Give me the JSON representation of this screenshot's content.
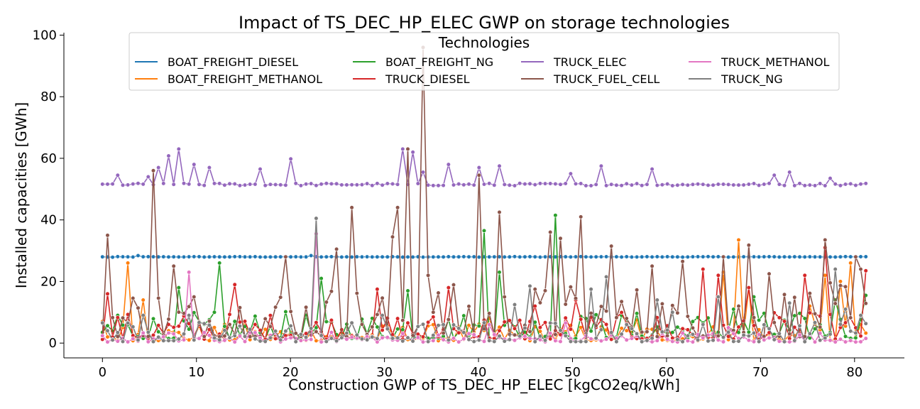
{
  "chart_data": {
    "type": "line",
    "title": "Impact of TS_DEC_HP_ELEC GWP on storage technologies",
    "xlabel": "Construction GWP of TS_DEC_HP_ELEC [kgCO2eq/kWh]",
    "ylabel": "Installed capacities [GWh]",
    "xlim": [
      -4.1,
      85.3
    ],
    "ylim": [
      -4.8,
      100.8
    ],
    "xticks": [
      0,
      10,
      20,
      30,
      40,
      50,
      60,
      70,
      80
    ],
    "yticks": [
      0,
      20,
      40,
      60,
      80,
      100
    ],
    "markers": true,
    "grid": false,
    "legend": {
      "title": "Technologies",
      "placement": "top-center",
      "columns": 4
    },
    "x_range": [
      0,
      81.2
    ],
    "points_per_series": 151,
    "series": [
      {
        "name": "BOAT_FREIGHT_DIESEL",
        "color": "#1f77b4",
        "base": 28.0,
        "noise": 0.15,
        "mode": "flat",
        "peaks": [
          [
            0,
            28.0
          ],
          [
            1.0,
            27.9
          ],
          [
            2.8,
            28.0
          ],
          [
            3.8,
            28.4
          ],
          [
            22.0,
            28.4
          ]
        ]
      },
      {
        "name": "BOAT_FREIGHT_METHANOL",
        "color": "#ff7f0e",
        "base": 2.5,
        "noise": 2.5,
        "mode": "noisy",
        "peaks": [
          [
            0,
            7.0
          ],
          [
            2.5,
            26.0
          ],
          [
            4.5,
            14.0
          ],
          [
            41.0,
            8.0
          ],
          [
            57.0,
            7.5
          ],
          [
            66.0,
            23.0
          ],
          [
            67.5,
            33.5
          ],
          [
            69.0,
            18.0
          ],
          [
            75.5,
            12.0
          ],
          [
            77.0,
            22.0
          ],
          [
            78.5,
            20.0
          ],
          [
            79.5,
            26.0
          ]
        ]
      },
      {
        "name": "BOAT_FREIGHT_NG",
        "color": "#2ca02c",
        "base": 5.0,
        "noise": 4.0,
        "mode": "noisy",
        "peaks": [
          [
            1.5,
            9.0
          ],
          [
            8.0,
            18.0
          ],
          [
            12.6,
            26.0
          ],
          [
            23.5,
            21.0
          ],
          [
            32.5,
            17.0
          ],
          [
            40.4,
            36.5
          ],
          [
            42.0,
            23.0
          ],
          [
            48.0,
            41.5
          ],
          [
            51.5,
            8.0
          ],
          [
            63.0,
            7.0
          ],
          [
            67.0,
            11.0
          ],
          [
            69.5,
            15.0
          ],
          [
            74.5,
            8.0
          ],
          [
            78.0,
            14.0
          ],
          [
            81.2,
            15.5
          ]
        ]
      },
      {
        "name": "TRUCK_DIESEL",
        "color": "#d62728",
        "base": 4.0,
        "noise": 4.0,
        "mode": "noisy",
        "peaks": [
          [
            0.5,
            16.0
          ],
          [
            14.0,
            19.0
          ],
          [
            29.0,
            17.5
          ],
          [
            37.0,
            18.0
          ],
          [
            46.0,
            12.0
          ],
          [
            50.5,
            14.0
          ],
          [
            64.0,
            24.0
          ],
          [
            65.5,
            22.0
          ],
          [
            68.5,
            18.0
          ],
          [
            74.5,
            22.0
          ],
          [
            76.6,
            31.0
          ],
          [
            81.2,
            23.5
          ]
        ]
      },
      {
        "name": "TRUCK_ELEC",
        "color": "#9467bd",
        "base": 51.5,
        "noise": 0.8,
        "mode": "flat",
        "peaks": [
          [
            0,
            51.6
          ],
          [
            1.6,
            54.5
          ],
          [
            5.0,
            54.0
          ],
          [
            6.0,
            57.0
          ],
          [
            7.3,
            60.8
          ],
          [
            8.1,
            63.0
          ],
          [
            10.0,
            58.0
          ],
          [
            11.5,
            57.0
          ],
          [
            17.0,
            56.5
          ],
          [
            20.2,
            59.8
          ],
          [
            32.0,
            63.0
          ],
          [
            32.8,
            62.0
          ],
          [
            34.0,
            55.5
          ],
          [
            37.0,
            58.0
          ],
          [
            40.0,
            57.0
          ],
          [
            42.0,
            57.5
          ],
          [
            50.0,
            55.0
          ],
          [
            53.0,
            57.5
          ],
          [
            58.5,
            56.5
          ],
          [
            71.5,
            54.5
          ],
          [
            73.0,
            55.5
          ],
          [
            77.5,
            53.5
          ]
        ]
      },
      {
        "name": "TRUCK_FUEL_CELL",
        "color": "#8c564b",
        "base": 7.0,
        "noise": 8.0,
        "mode": "noisy",
        "peaks": [
          [
            0.6,
            35.0
          ],
          [
            5.5,
            56.0
          ],
          [
            7.7,
            25.0
          ],
          [
            9.5,
            15.0
          ],
          [
            19.5,
            28.0
          ],
          [
            25.0,
            30.5
          ],
          [
            26.6,
            44.0
          ],
          [
            31.0,
            34.5
          ],
          [
            31.6,
            44.0
          ],
          [
            32.3,
            63.0
          ],
          [
            34.1,
            96.0
          ],
          [
            34.6,
            22.0
          ],
          [
            40.0,
            54.5
          ],
          [
            42.3,
            42.5
          ],
          [
            47.5,
            36.0
          ],
          [
            48.6,
            34.0
          ],
          [
            50.7,
            41.0
          ],
          [
            54.0,
            31.5
          ],
          [
            58.6,
            25.0
          ],
          [
            61.8,
            26.5
          ],
          [
            66.0,
            28.0
          ],
          [
            68.7,
            31.8
          ],
          [
            71.0,
            22.5
          ],
          [
            76.8,
            33.5
          ],
          [
            80.2,
            28.0
          ],
          [
            80.9,
            24.0
          ]
        ]
      },
      {
        "name": "TRUCK_METHANOL",
        "color": "#e377c2",
        "base": 1.2,
        "noise": 1.5,
        "mode": "noisy",
        "peaks": [
          [
            9.2,
            23.0
          ],
          [
            22.5,
            35.5
          ],
          [
            41.0,
            6.0
          ],
          [
            49.0,
            6.5
          ],
          [
            66.5,
            5.0
          ]
        ]
      },
      {
        "name": "TRUCK_NG",
        "color": "#7f7f7f",
        "base": 1.5,
        "noise": 3.0,
        "mode": "noisy",
        "peaks": [
          [
            2.5,
            6.5
          ],
          [
            4.6,
            9.0
          ],
          [
            9.0,
            9.0
          ],
          [
            22.6,
            40.5
          ],
          [
            30.0,
            9.0
          ],
          [
            44.0,
            12.5
          ],
          [
            45.5,
            18.5
          ],
          [
            52.0,
            17.5
          ],
          [
            53.6,
            21.5
          ],
          [
            59.0,
            14.0
          ],
          [
            60.5,
            10.0
          ],
          [
            65.7,
            15.0
          ],
          [
            73.0,
            13.0
          ],
          [
            78.0,
            24.0
          ],
          [
            79.0,
            11.0
          ],
          [
            80.5,
            9.0
          ]
        ]
      }
    ]
  }
}
